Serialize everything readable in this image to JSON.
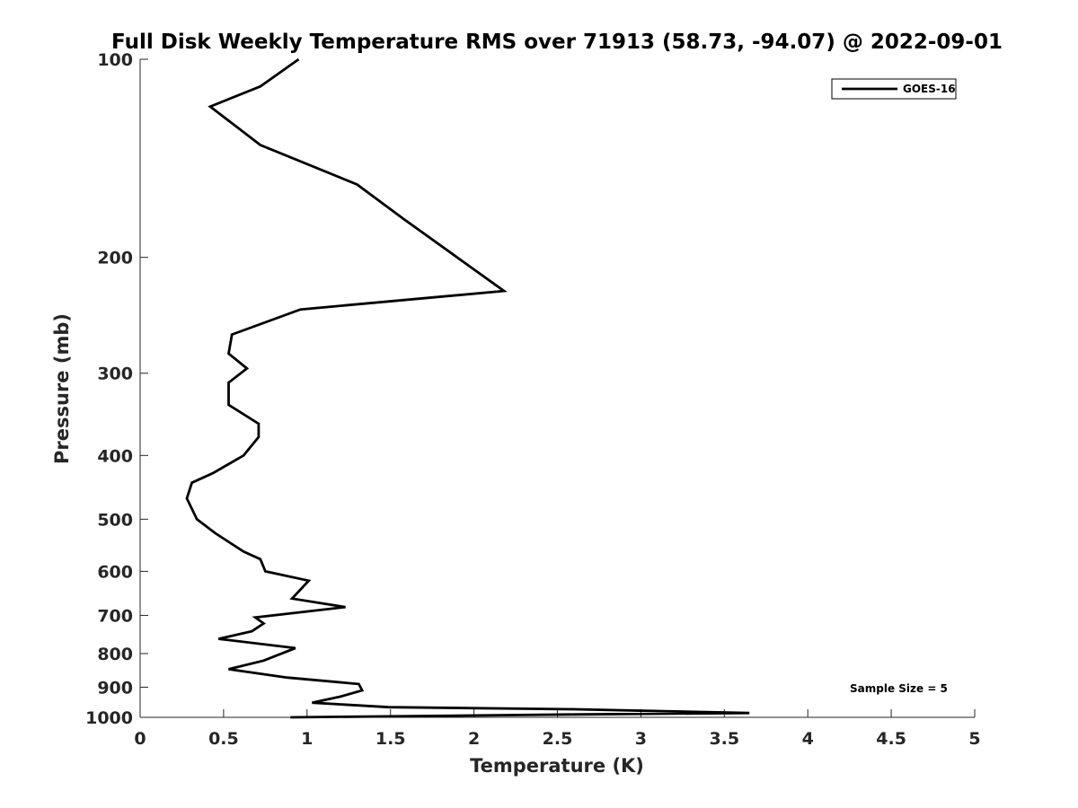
{
  "chart_data": {
    "type": "line",
    "title": "Full Disk Weekly Temperature RMS over 71913 (58.73, -94.07) @ 2022-09-01",
    "xlabel": "Temperature (K)",
    "ylabel": "Pressure (mb)",
    "xlim": [
      0,
      5
    ],
    "ylim": [
      100,
      1000
    ],
    "y_scale": "log",
    "y_reversed": true,
    "grid": false,
    "x_ticks": [
      0,
      0.5,
      1,
      1.5,
      2,
      2.5,
      3,
      3.5,
      4,
      4.5,
      5
    ],
    "x_tick_labels": [
      "0",
      "0.5",
      "1",
      "1.5",
      "2",
      "2.5",
      "3",
      "3.5",
      "4",
      "4.5",
      "5"
    ],
    "y_ticks": [
      100,
      200,
      300,
      400,
      500,
      600,
      700,
      800,
      900,
      1000
    ],
    "y_tick_labels": [
      "100",
      "200",
      "300",
      "400",
      "500",
      "600",
      "700",
      "800",
      "900",
      "1000"
    ],
    "legend": {
      "placement": "top-right"
    },
    "annotation": "Sample Size = 5",
    "series": [
      {
        "name": "GOES-16",
        "color": "#000000",
        "points": [
          [
            0.95,
            100
          ],
          [
            0.72,
            110
          ],
          [
            0.42,
            118
          ],
          [
            0.72,
            135
          ],
          [
            1.3,
            155
          ],
          [
            1.58,
            175
          ],
          [
            2.18,
            225
          ],
          [
            0.96,
            240
          ],
          [
            0.55,
            262
          ],
          [
            0.53,
            280
          ],
          [
            0.64,
            295
          ],
          [
            0.53,
            310
          ],
          [
            0.53,
            335
          ],
          [
            0.71,
            358
          ],
          [
            0.71,
            375
          ],
          [
            0.62,
            400
          ],
          [
            0.44,
            425
          ],
          [
            0.31,
            440
          ],
          [
            0.28,
            465
          ],
          [
            0.34,
            500
          ],
          [
            0.45,
            525
          ],
          [
            0.62,
            560
          ],
          [
            0.72,
            575
          ],
          [
            0.75,
            600
          ],
          [
            1.01,
            620
          ],
          [
            0.91,
            660
          ],
          [
            1.23,
            680
          ],
          [
            0.69,
            705
          ],
          [
            0.74,
            720
          ],
          [
            0.67,
            740
          ],
          [
            0.47,
            760
          ],
          [
            0.93,
            785
          ],
          [
            0.74,
            820
          ],
          [
            0.53,
            845
          ],
          [
            0.88,
            870
          ],
          [
            1.31,
            890
          ],
          [
            1.33,
            910
          ],
          [
            1.2,
            930
          ],
          [
            1.03,
            950
          ],
          [
            1.49,
            965
          ],
          [
            2.6,
            972
          ],
          [
            3.65,
            985
          ],
          [
            2.6,
            990
          ],
          [
            0.9,
            1000
          ]
        ]
      }
    ]
  }
}
